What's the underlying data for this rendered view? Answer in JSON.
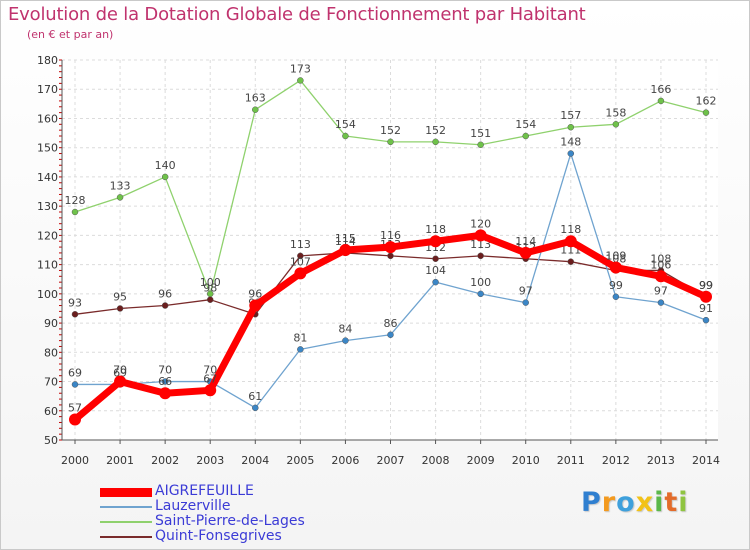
{
  "header": {
    "title": "Evolution de la Dotation Globale de Fonctionnement par Habitant",
    "subtitle": "(en € et par an)"
  },
  "chart_data": {
    "type": "line",
    "title": "Evolution de la Dotation Globale de Fonctionnement par Habitant",
    "subtitle": "(en € et par an)",
    "xlabel": "",
    "ylabel": "",
    "ylim": [
      50,
      180
    ],
    "yticks": [
      50,
      60,
      70,
      80,
      90,
      100,
      110,
      120,
      130,
      140,
      150,
      160,
      170,
      180
    ],
    "grid": true,
    "legend_position": "bottom-left",
    "x": [
      "2000",
      "2001",
      "2002",
      "2003",
      "2004",
      "2005",
      "2006",
      "2007",
      "2008",
      "2009",
      "2010",
      "2011",
      "2012",
      "2013",
      "2014"
    ],
    "series": [
      {
        "name": "Saint-Pierre-de-Lages",
        "color": "#8fd16d",
        "marker": "#6fc24a",
        "values": [
          128,
          133,
          140,
          100,
          163,
          173,
          154,
          152,
          152,
          151,
          154,
          157,
          158,
          166,
          162
        ]
      },
      {
        "name": "Quint-Fonsegrives",
        "color": "#7a2b2b",
        "marker": "#6b1e1e",
        "values": [
          93,
          95,
          96,
          98,
          93,
          113,
          114,
          113,
          112,
          113,
          112,
          111,
          108,
          108,
          99
        ]
      },
      {
        "name": "Lauzerville",
        "color": "#6fa3cf",
        "marker": "#3b86c6",
        "values": [
          69,
          69,
          70,
          70,
          61,
          81,
          84,
          86,
          104,
          100,
          97,
          148,
          99,
          97,
          91
        ]
      },
      {
        "name": "AIGREFEUILLE",
        "color": "#ff0000",
        "marker": "#ff0000",
        "values": [
          57,
          70,
          66,
          67,
          96,
          107,
          115,
          116,
          118,
          120,
          114,
          118,
          109,
          106,
          99
        ]
      }
    ]
  },
  "legend": {
    "items": [
      {
        "label": "AIGREFEUILLE",
        "color": "#ff0000",
        "text_color": "#3b3bd6"
      },
      {
        "label": "Lauzerville",
        "color": "#6fa3cf",
        "text_color": "#3b3bd6"
      },
      {
        "label": "Saint-Pierre-de-Lages",
        "color": "#8fd16d",
        "text_color": "#3b3bd6"
      },
      {
        "label": "Quint-Fonsegrives",
        "color": "#7a2b2b",
        "text_color": "#3b3bd6"
      }
    ]
  },
  "logo": {
    "letters": [
      "P",
      "r",
      "o",
      "x",
      "i",
      "t",
      "i"
    ],
    "colors": [
      "#2f7fd0",
      "#f39a1f",
      "#3ea0dc",
      "#f2c218",
      "#5bb84a",
      "#e36b2a",
      "#8fc440"
    ]
  }
}
